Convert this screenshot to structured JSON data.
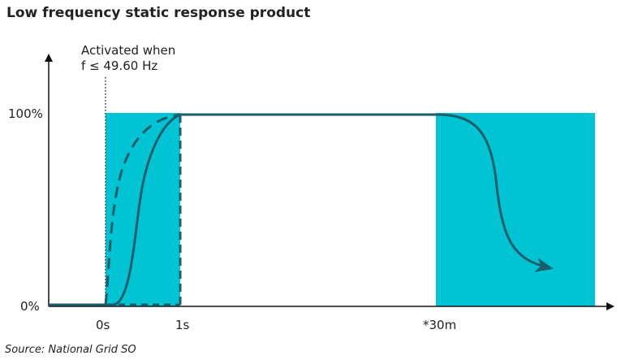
{
  "title": "Low frequency static response product",
  "annotation": {
    "line1": "Activated when",
    "line2": "f ≤ 49.60 Hz"
  },
  "y_labels": [
    "100%",
    "0%"
  ],
  "x_labels": [
    "0s",
    "1s",
    "*30m"
  ],
  "source": "Source: National Grid SO"
}
